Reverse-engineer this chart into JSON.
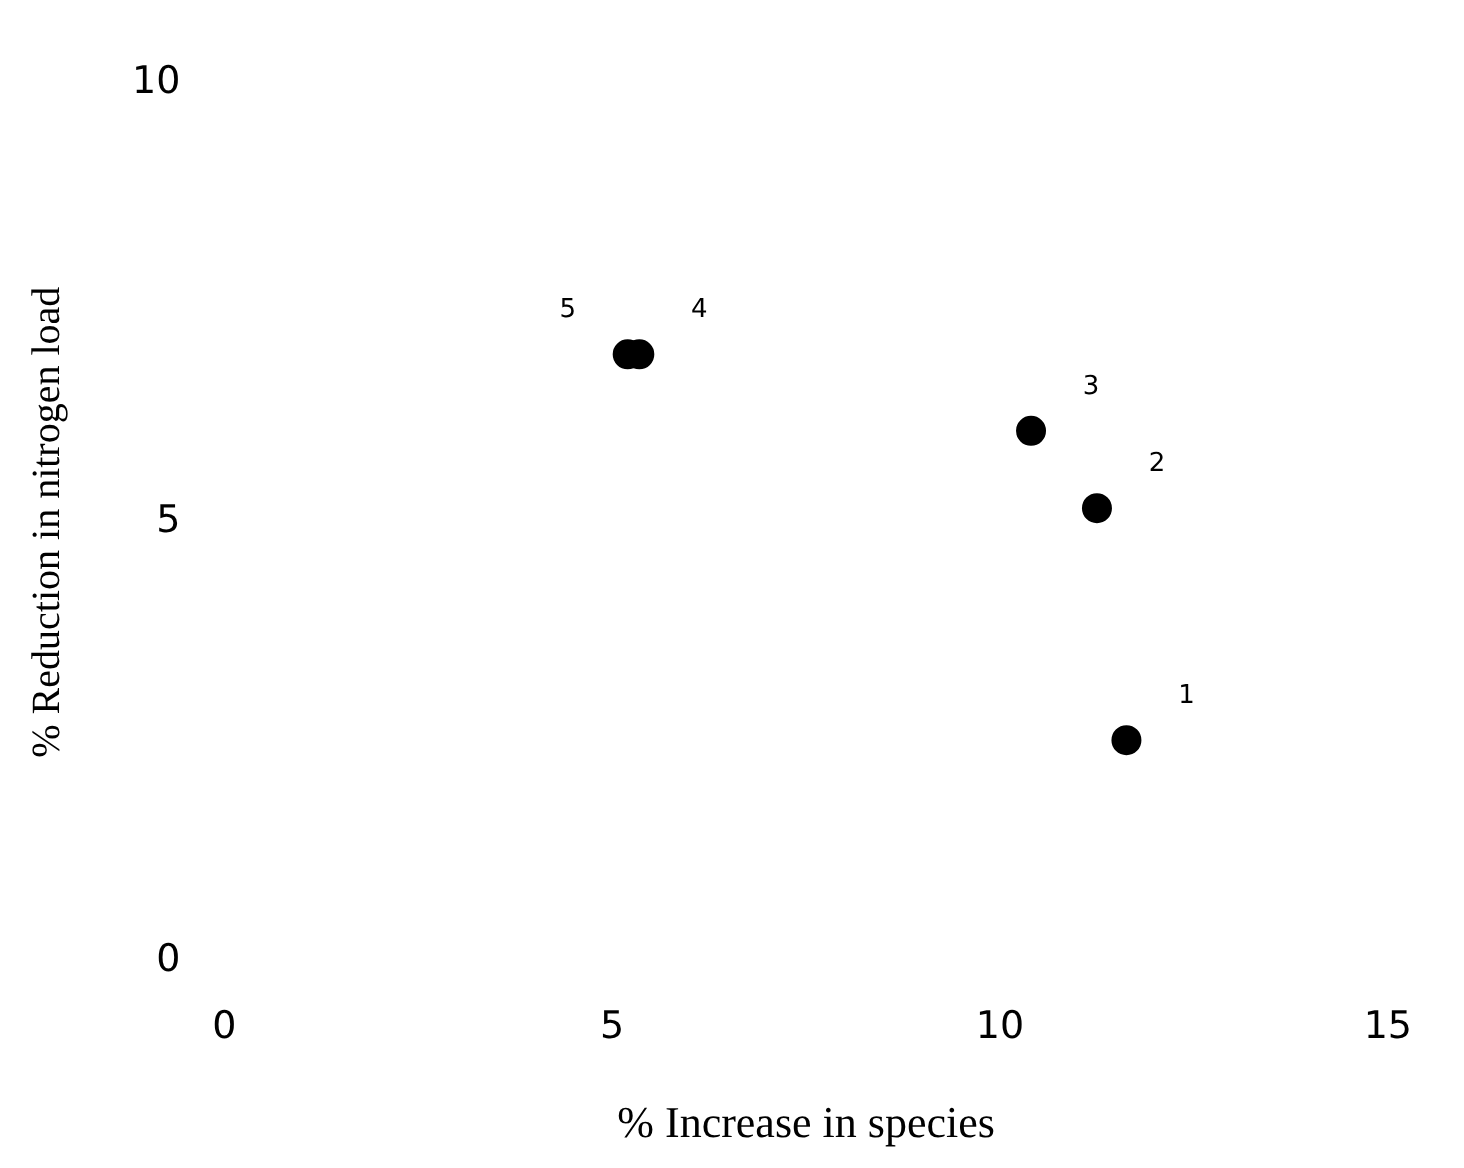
{
  "chart_data": {
    "type": "scatter",
    "xlabel": "% Increase in species",
    "ylabel": "% Reduction in nitrogen load",
    "x": [
      11.63,
      11.25,
      10.4,
      5.35,
      5.2
    ],
    "values": [
      2.52,
      5.16,
      6.04,
      6.91,
      6.91
    ],
    "color": "#000000",
    "marker": "circle",
    "grid": false,
    "legend": false,
    "xlim": [
      0,
      15
    ],
    "xticks": [
      0,
      5,
      10,
      15
    ],
    "ylim": [
      0,
      10
    ],
    "yticks": [
      0,
      5,
      10
    ],
    "annotations": [
      {
        "text": "1",
        "x": 11.63,
        "y": 2.52
      },
      {
        "text": "2",
        "x": 11.25,
        "y": 5.16
      },
      {
        "text": "3",
        "x": 10.4,
        "y": 6.04
      },
      {
        "text": "4",
        "x": 5.35,
        "y": 6.91
      },
      {
        "text": "5",
        "x": 5.2,
        "y": 6.91
      }
    ]
  }
}
